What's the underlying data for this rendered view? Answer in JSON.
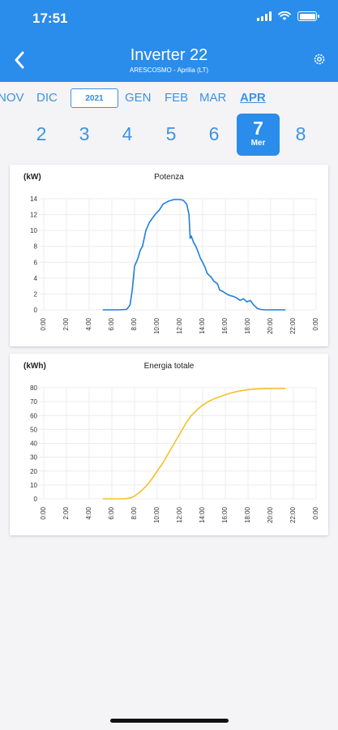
{
  "status_bar": {
    "time": "17:51"
  },
  "header": {
    "title": "Inverter 22",
    "subtitle": "ARESCOSMO - Aprilia (LT)",
    "accent_color": "#2a8ceb"
  },
  "months": {
    "items": [
      {
        "label": "NOV",
        "active": false
      },
      {
        "label": "DIC",
        "active": false
      },
      {
        "label": "GEN",
        "active": false
      },
      {
        "label": "FEB",
        "active": false
      },
      {
        "label": "MAR",
        "active": false
      },
      {
        "label": "APR",
        "active": true
      }
    ],
    "year": "2021"
  },
  "days": {
    "items": [
      {
        "day": "2"
      },
      {
        "day": "3"
      },
      {
        "day": "4"
      },
      {
        "day": "5"
      },
      {
        "day": "6"
      },
      {
        "day": "7",
        "weekday": "Mer",
        "selected": true
      },
      {
        "day": "8"
      }
    ]
  },
  "chart_data": [
    {
      "type": "line",
      "title": "Potenza",
      "unit_label": "(kW)",
      "color": "#1f7ee0",
      "x_ticks": [
        "0:00",
        "2:00",
        "4:00",
        "6:00",
        "8:00",
        "10:00",
        "12:00",
        "14:00",
        "16:00",
        "18:00",
        "20:00",
        "22:00",
        "0:00"
      ],
      "y_ticks": [
        0,
        2,
        4,
        6,
        8,
        10,
        12,
        14
      ],
      "ylim": [
        0,
        14
      ],
      "xlim": [
        0,
        24
      ],
      "grid": true,
      "points": [
        [
          5.2,
          0
        ],
        [
          6.5,
          0
        ],
        [
          7.3,
          0.05
        ],
        [
          7.6,
          0.6
        ],
        [
          7.8,
          2.5
        ],
        [
          8.0,
          5.5
        ],
        [
          8.3,
          6.5
        ],
        [
          8.5,
          7.5
        ],
        [
          8.7,
          8
        ],
        [
          9.0,
          10
        ],
        [
          9.3,
          11
        ],
        [
          9.8,
          12
        ],
        [
          10.2,
          12.6
        ],
        [
          10.5,
          13.3
        ],
        [
          11.0,
          13.7
        ],
        [
          11.5,
          13.9
        ],
        [
          12.0,
          13.9
        ],
        [
          12.3,
          13.8
        ],
        [
          12.6,
          13.3
        ],
        [
          12.8,
          12
        ],
        [
          12.9,
          9
        ],
        [
          13.0,
          9.3
        ],
        [
          13.2,
          8.5
        ],
        [
          13.4,
          8
        ],
        [
          13.6,
          7.3
        ],
        [
          13.8,
          6.5
        ],
        [
          14.0,
          6
        ],
        [
          14.2,
          5.4
        ],
        [
          14.4,
          4.6
        ],
        [
          14.7,
          4.2
        ],
        [
          15.0,
          3.6
        ],
        [
          15.3,
          3.3
        ],
        [
          15.5,
          2.5
        ],
        [
          15.8,
          2.3
        ],
        [
          16.1,
          2.0
        ],
        [
          16.4,
          1.8
        ],
        [
          16.7,
          1.7
        ],
        [
          17.0,
          1.5
        ],
        [
          17.3,
          1.2
        ],
        [
          17.6,
          1.4
        ],
        [
          17.9,
          1.0
        ],
        [
          18.2,
          1.2
        ],
        [
          18.5,
          0.6
        ],
        [
          18.8,
          0.2
        ],
        [
          19.1,
          0.05
        ],
        [
          19.5,
          0
        ],
        [
          21.3,
          0
        ]
      ]
    },
    {
      "type": "line",
      "title": "Energia totale",
      "unit_label": "(kWh)",
      "color": "#f5c028",
      "x_ticks": [
        "0:00",
        "2:00",
        "4:00",
        "6:00",
        "8:00",
        "10:00",
        "12:00",
        "14:00",
        "16:00",
        "18:00",
        "20:00",
        "22:00",
        "0:00"
      ],
      "y_ticks": [
        0,
        10,
        20,
        30,
        40,
        50,
        60,
        70,
        80
      ],
      "ylim": [
        0,
        80
      ],
      "xlim": [
        0,
        24
      ],
      "grid": true,
      "points": [
        [
          5.2,
          0
        ],
        [
          7.0,
          0
        ],
        [
          7.6,
          0.5
        ],
        [
          8.0,
          2
        ],
        [
          8.5,
          5
        ],
        [
          9.0,
          9
        ],
        [
          9.5,
          14
        ],
        [
          10.0,
          20
        ],
        [
          10.5,
          26
        ],
        [
          11.0,
          33
        ],
        [
          11.5,
          40
        ],
        [
          12.0,
          47
        ],
        [
          12.5,
          54
        ],
        [
          13.0,
          60
        ],
        [
          13.5,
          64
        ],
        [
          14.0,
          67.5
        ],
        [
          14.5,
          70
        ],
        [
          15.0,
          72
        ],
        [
          15.5,
          73.5
        ],
        [
          16.0,
          75
        ],
        [
          16.5,
          76.2
        ],
        [
          17.0,
          77.2
        ],
        [
          17.5,
          78
        ],
        [
          18.0,
          78.6
        ],
        [
          18.5,
          79
        ],
        [
          19.0,
          79.2
        ],
        [
          19.5,
          79.3
        ],
        [
          20.5,
          79.4
        ],
        [
          21.3,
          79.4
        ]
      ]
    }
  ]
}
